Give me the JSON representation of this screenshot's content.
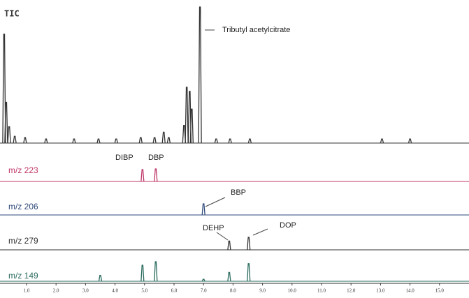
{
  "chart_data": {
    "type": "chromatogram",
    "xlim": [
      0.1,
      16.0
    ],
    "xticks": [
      {
        "value": 1,
        "label": "1.0"
      },
      {
        "value": 2,
        "label": "2.0"
      },
      {
        "value": 3,
        "label": "3.0"
      },
      {
        "value": 4,
        "label": "4.0"
      },
      {
        "value": 5,
        "label": "5.0"
      },
      {
        "value": 6,
        "label": "6.0"
      },
      {
        "value": 7,
        "label": "7.0"
      },
      {
        "value": 8,
        "label": "8.0"
      },
      {
        "value": 9,
        "label": "9.0"
      },
      {
        "value": 10,
        "label": "10.0"
      },
      {
        "value": 11,
        "label": "11.0"
      },
      {
        "value": 12,
        "label": "12.0"
      },
      {
        "value": 13,
        "label": "13.0"
      },
      {
        "value": 14,
        "label": "14.0"
      },
      {
        "value": 15,
        "label": "15.0"
      }
    ],
    "series": [
      {
        "name": "TIC",
        "color": "#333333",
        "annotations": [
          "Tributyl acetylcitrate"
        ],
        "x": [
          0.24,
          0.31,
          0.41,
          0.6,
          0.95,
          1.66,
          2.61,
          3.44,
          4.04,
          4.87,
          5.34,
          5.65,
          5.82,
          6.34,
          6.43,
          6.53,
          6.6,
          6.88,
          7.43,
          7.9,
          8.57,
          13.05,
          14.0
        ],
        "values": [
          80,
          30,
          12,
          5,
          4,
          3,
          3,
          3,
          3,
          4,
          4,
          8,
          4,
          13,
          41,
          38,
          25,
          100,
          3,
          3,
          3,
          3,
          3
        ]
      },
      {
        "name": "m/z 223",
        "color": "#c0396b",
        "annotations": [
          "DIBP",
          "DBP"
        ],
        "x": [
          4.93,
          5.38
        ],
        "values": [
          95,
          100
        ]
      },
      {
        "name": "m/z 206",
        "color": "#2e4a7a",
        "annotations": [
          "BBP"
        ],
        "x": [
          7.0
        ],
        "values": [
          100
        ]
      },
      {
        "name": "m/z 279",
        "color": "#333333",
        "annotations": [
          "DEHP",
          "DOP"
        ],
        "x": [
          7.87,
          8.53
        ],
        "values": [
          70,
          100
        ]
      },
      {
        "name": "m/z 149",
        "color": "#2a6b5e",
        "annotations": [],
        "x": [
          3.5,
          4.93,
          5.38,
          7.0,
          7.87,
          8.53
        ],
        "values": [
          30,
          82,
          100,
          10,
          45,
          90
        ]
      }
    ]
  }
}
